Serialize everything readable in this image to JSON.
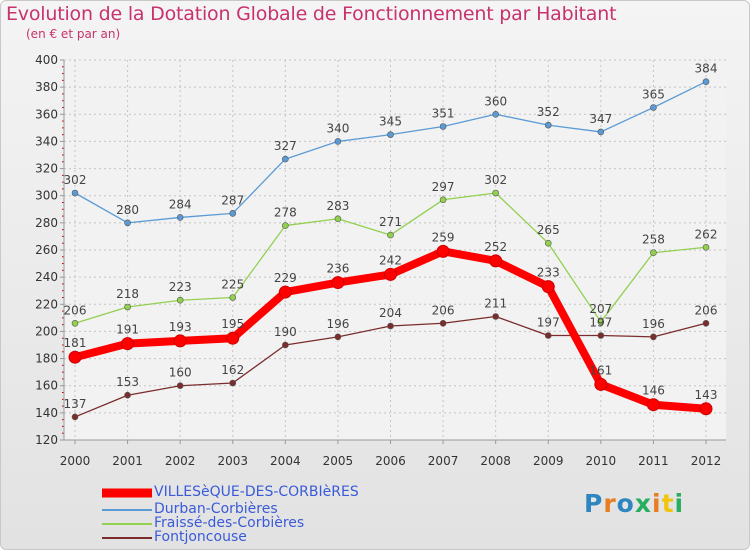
{
  "title": "Evolution de la Dotation Globale de Fonctionnement par Habitant",
  "subtitle": "(en € et par an)",
  "logo": {
    "text": "Proxiti",
    "colors": [
      "#2e86c1",
      "#e67e22",
      "#2e86c1",
      "#27ae60",
      "#e67e22",
      "#f1c40f",
      "#27ae60"
    ]
  },
  "chart_data": {
    "type": "line",
    "x": [
      2000,
      2001,
      2002,
      2003,
      2004,
      2005,
      2006,
      2007,
      2008,
      2009,
      2010,
      2011,
      2012
    ],
    "ylim": [
      120,
      400
    ],
    "yticks": [
      120,
      140,
      160,
      180,
      200,
      220,
      240,
      260,
      280,
      300,
      320,
      340,
      360,
      380,
      400
    ],
    "grid": "horizontal-dashed",
    "legend_position": "bottom-left",
    "series": [
      {
        "name": "Durban-Corbières",
        "color": "#5b9bd5",
        "values": [
          302,
          280,
          284,
          287,
          327,
          340,
          345,
          351,
          360,
          352,
          347,
          365,
          384
        ],
        "emphasis": false
      },
      {
        "name": "Fraissé-des-Corbières",
        "color": "#92d050",
        "values": [
          206,
          218,
          223,
          225,
          278,
          283,
          271,
          297,
          302,
          265,
          207,
          258,
          262
        ],
        "emphasis": false
      },
      {
        "name": "Fontjoncouse",
        "color": "#7b2c2c",
        "values": [
          137,
          153,
          160,
          162,
          190,
          196,
          204,
          206,
          211,
          197,
          197,
          196,
          206
        ],
        "emphasis": false
      },
      {
        "name": "VILLESèQUE-DES-CORBIèRES",
        "color": "#ff0000",
        "values": [
          181,
          191,
          193,
          195,
          229,
          236,
          242,
          259,
          252,
          233,
          161,
          146,
          143
        ],
        "emphasis": true
      }
    ],
    "legend_order": [
      3,
      0,
      1,
      2
    ],
    "legend_label_colors": [
      "#3a5bd9",
      "#3a5bd9",
      "#3a5bd9",
      "#3a5bd9"
    ]
  }
}
